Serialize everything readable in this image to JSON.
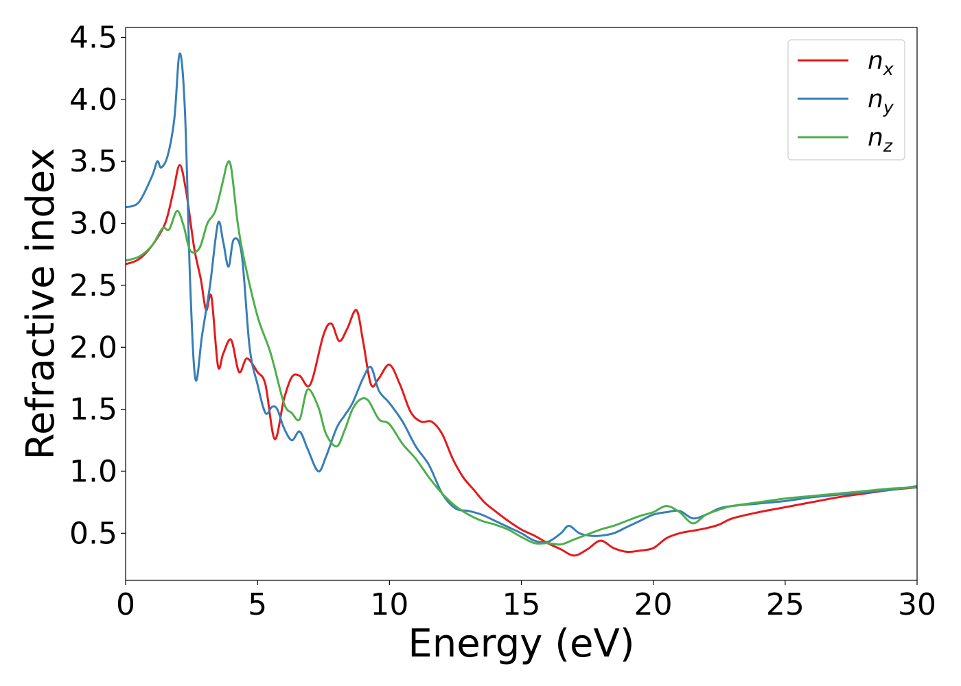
{
  "chart_data": {
    "type": "line",
    "title": "",
    "xlabel": "Energy (eV)",
    "ylabel": "Refractive index",
    "xlim": [
      0,
      30
    ],
    "ylim": [
      0.12,
      4.58
    ],
    "xticks": [
      0,
      5,
      10,
      15,
      20,
      25,
      30
    ],
    "xtick_labels": [
      "0",
      "5",
      "10",
      "15",
      "20",
      "25",
      "30"
    ],
    "yticks": [
      0.5,
      1.0,
      1.5,
      2.0,
      2.5,
      3.0,
      3.5,
      4.0,
      4.5
    ],
    "ytick_labels": [
      "0.5",
      "1.0",
      "1.5",
      "2.0",
      "2.5",
      "3.0",
      "3.5",
      "4.0",
      "4.5"
    ],
    "grid": false,
    "legend_position": "upper-right",
    "series": [
      {
        "name": "n_x",
        "label_base": "n",
        "label_sub": "x",
        "color": "#e41a1c",
        "x": [
          0,
          0.5,
          1.0,
          1.5,
          1.8,
          2.05,
          2.3,
          2.6,
          2.85,
          3.05,
          3.25,
          3.5,
          3.7,
          4.0,
          4.3,
          4.6,
          5.0,
          5.3,
          5.65,
          6.0,
          6.3,
          6.6,
          7.0,
          7.5,
          7.8,
          8.1,
          8.4,
          8.75,
          9.0,
          9.3,
          9.6,
          10.0,
          10.4,
          10.8,
          11.2,
          11.6,
          12.0,
          12.4,
          12.8,
          13.2,
          13.6,
          14.0,
          14.5,
          15.0,
          15.5,
          16.0,
          16.5,
          17.0,
          17.5,
          18.0,
          18.5,
          19.0,
          19.5,
          20.0,
          20.5,
          21.0,
          21.5,
          22.0,
          22.5,
          23.0,
          24.0,
          25.0,
          26.0,
          27.0,
          28.0,
          29.0,
          30.0
        ],
        "y": [
          2.67,
          2.71,
          2.82,
          3.0,
          3.25,
          3.47,
          3.25,
          2.8,
          2.55,
          2.3,
          2.41,
          1.85,
          1.95,
          2.06,
          1.8,
          1.91,
          1.8,
          1.7,
          1.26,
          1.58,
          1.76,
          1.77,
          1.7,
          2.1,
          2.19,
          2.05,
          2.15,
          2.3,
          2.05,
          1.7,
          1.75,
          1.86,
          1.7,
          1.48,
          1.4,
          1.4,
          1.3,
          1.1,
          0.95,
          0.85,
          0.75,
          0.68,
          0.6,
          0.53,
          0.48,
          0.42,
          0.37,
          0.32,
          0.37,
          0.44,
          0.38,
          0.35,
          0.36,
          0.38,
          0.46,
          0.5,
          0.52,
          0.54,
          0.57,
          0.62,
          0.67,
          0.71,
          0.75,
          0.79,
          0.82,
          0.85,
          0.87
        ]
      },
      {
        "name": "n_y",
        "label_base": "n",
        "label_sub": "y",
        "color": "#377eb8",
        "x": [
          0,
          0.5,
          1.0,
          1.2,
          1.35,
          1.6,
          1.85,
          2.05,
          2.25,
          2.45,
          2.65,
          2.9,
          3.2,
          3.5,
          3.7,
          3.9,
          4.1,
          4.4,
          4.7,
          5.0,
          5.3,
          5.55,
          5.75,
          6.0,
          6.3,
          6.6,
          6.9,
          7.3,
          7.6,
          8.0,
          8.3,
          8.6,
          9.0,
          9.3,
          9.6,
          10.0,
          10.5,
          11.0,
          11.5,
          12.0,
          12.5,
          13.0,
          13.5,
          14.0,
          14.5,
          15.0,
          15.5,
          16.0,
          16.5,
          16.8,
          17.2,
          17.6,
          18.0,
          18.5,
          19.0,
          19.5,
          20.0,
          20.5,
          21.0,
          21.5,
          22.0,
          22.5,
          23.0,
          24.0,
          25.0,
          26.0,
          27.0,
          28.0,
          29.0,
          30.0
        ],
        "y": [
          3.13,
          3.17,
          3.38,
          3.5,
          3.45,
          3.55,
          3.85,
          4.37,
          3.9,
          2.5,
          1.74,
          2.1,
          2.5,
          3.0,
          2.85,
          2.65,
          2.87,
          2.75,
          2.0,
          1.7,
          1.47,
          1.52,
          1.5,
          1.35,
          1.25,
          1.32,
          1.18,
          1.0,
          1.12,
          1.35,
          1.45,
          1.55,
          1.75,
          1.84,
          1.65,
          1.55,
          1.4,
          1.2,
          1.05,
          0.82,
          0.7,
          0.68,
          0.65,
          0.6,
          0.55,
          0.5,
          0.44,
          0.43,
          0.5,
          0.56,
          0.5,
          0.48,
          0.48,
          0.5,
          0.55,
          0.6,
          0.65,
          0.67,
          0.68,
          0.62,
          0.65,
          0.7,
          0.72,
          0.74,
          0.76,
          0.79,
          0.81,
          0.83,
          0.85,
          0.88
        ]
      },
      {
        "name": "n_z",
        "label_base": "n",
        "label_sub": "z",
        "color": "#4daf4a",
        "x": [
          0,
          0.5,
          1.0,
          1.4,
          1.65,
          1.95,
          2.2,
          2.45,
          2.8,
          3.1,
          3.4,
          3.7,
          3.85,
          4.0,
          4.25,
          4.5,
          5.0,
          5.5,
          6.0,
          6.3,
          6.6,
          6.9,
          7.3,
          7.6,
          8.0,
          8.3,
          8.6,
          8.9,
          9.2,
          9.6,
          10.0,
          10.5,
          11.0,
          11.5,
          12.0,
          12.5,
          13.0,
          13.5,
          14.0,
          14.5,
          15.0,
          15.5,
          16.0,
          16.5,
          17.0,
          17.5,
          18.0,
          18.5,
          19.0,
          19.5,
          20.0,
          20.5,
          21.0,
          21.5,
          22.0,
          22.5,
          23.0,
          24.0,
          25.0,
          26.0,
          27.0,
          28.0,
          29.0,
          30.0
        ],
        "y": [
          2.7,
          2.73,
          2.82,
          2.96,
          2.95,
          3.1,
          2.98,
          2.78,
          2.8,
          3.0,
          3.1,
          3.35,
          3.48,
          3.45,
          3.0,
          2.7,
          2.25,
          1.95,
          1.55,
          1.47,
          1.42,
          1.66,
          1.52,
          1.3,
          1.2,
          1.33,
          1.5,
          1.58,
          1.57,
          1.42,
          1.38,
          1.22,
          1.1,
          0.95,
          0.82,
          0.72,
          0.65,
          0.6,
          0.57,
          0.53,
          0.47,
          0.42,
          0.42,
          0.41,
          0.45,
          0.49,
          0.53,
          0.56,
          0.6,
          0.64,
          0.67,
          0.72,
          0.67,
          0.58,
          0.65,
          0.69,
          0.72,
          0.75,
          0.78,
          0.8,
          0.82,
          0.84,
          0.86,
          0.87
        ]
      }
    ]
  }
}
